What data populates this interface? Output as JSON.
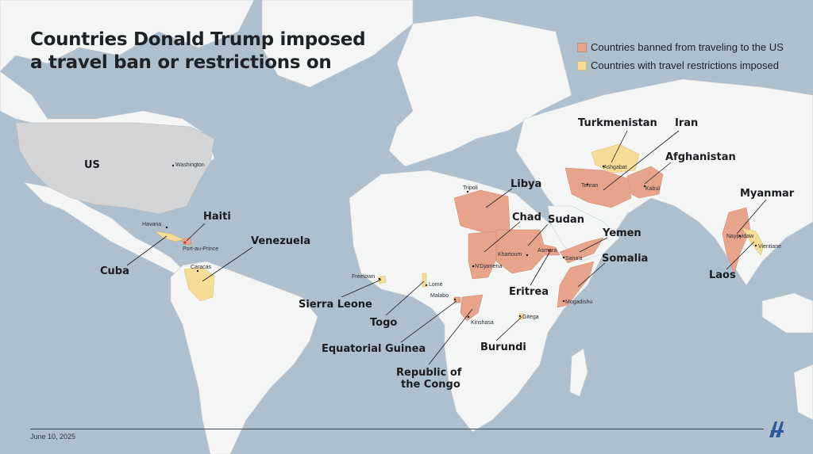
{
  "title": {
    "line1": "Countries Donald Trump imposed",
    "line2": "a travel ban or restrictions on"
  },
  "legend": {
    "banned": {
      "label": "Countries banned from traveling to the US",
      "color": "#e8a48a"
    },
    "restricted": {
      "label": "Countries with travel restrictions imposed",
      "color": "#f7dc96"
    }
  },
  "colors": {
    "ocean": "#aebfcd",
    "land": "#f4f5f5",
    "us": "#d4d5d6",
    "text": "#1e2126"
  },
  "countries": {
    "us": "US",
    "haiti": "Haiti",
    "cuba": "Cuba",
    "venezuela": "Venezuela",
    "sierra_leone": "Sierra Leone",
    "togo": "Togo",
    "equatorial_guinea": "Equatorial Guinea",
    "congo_line1": "Republic of",
    "congo_line2": "the Congo",
    "libya": "Libya",
    "chad": "Chad",
    "sudan": "Sudan",
    "eritrea": "Eritrea",
    "burundi": "Burundi",
    "yemen": "Yemen",
    "somalia": "Somalia",
    "turkmenistan": "Turkmenistan",
    "iran": "Iran",
    "afghanistan": "Afghanistan",
    "myanmar": "Myanmar",
    "laos": "Laos"
  },
  "capitals": {
    "washington": "Washington",
    "havana": "Havana",
    "port_au_prince": "Port-au-Prince",
    "caracas": "Caracas",
    "freetown": "Freetown",
    "lome": "Lomé",
    "malabo": "Malabo",
    "kinshasa": "Kinshasa",
    "tripoli": "Tripoli",
    "ndjamena": "N'Djamena",
    "khartoum": "Khartoum",
    "asmara": "Asmara",
    "sanaa": "Sana'a",
    "mogadishu": "Mogadishu",
    "gitega": "Gitega",
    "ashgabat": "Ashgabat",
    "tehran": "Tehran",
    "kabul": "Kabul",
    "naypyidaw": "Naypyidaw",
    "vientiane": "Vientiane"
  },
  "date": "June 10, 2025",
  "logo": {
    "icon": "aa-agency-logo"
  }
}
